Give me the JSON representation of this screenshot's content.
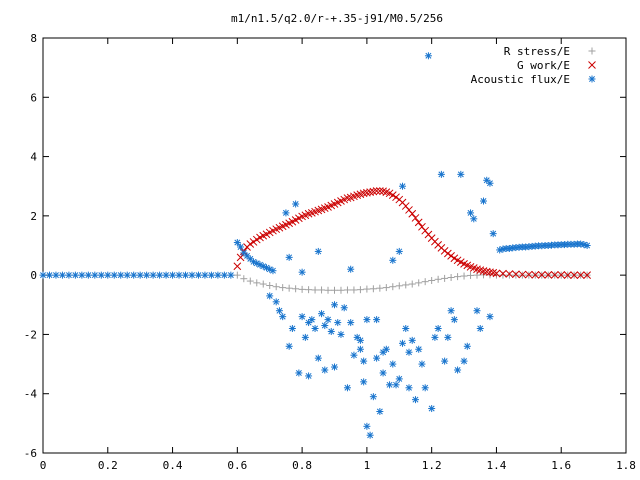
{
  "colors": {
    "r_stress": "#a0a0a0",
    "g_work": "#cc0000",
    "acoustic": "#1874cd"
  },
  "chart_data": {
    "type": "scatter",
    "title": "m1/n1.5/q2.0/r-+.35-j91/M0.5/256",
    "xlabel": "",
    "ylabel": "",
    "xlim": [
      0,
      1.8
    ],
    "ylim": [
      -6,
      8
    ],
    "xticks": [
      "0",
      "0.2",
      "0.4",
      "0.6",
      "0.8",
      "1",
      "1.2",
      "1.4",
      "1.6",
      "1.8"
    ],
    "yticks": [
      "-6",
      "-4",
      "-2",
      "0",
      "2",
      "4",
      "6",
      "8"
    ],
    "grid": false,
    "legend_position": "top-right",
    "series": [
      {
        "name": "R stress/E",
        "marker": "plus",
        "points": [
          [
            0.6,
            0
          ],
          [
            0.62,
            -0.12
          ],
          [
            0.64,
            -0.2
          ],
          [
            0.66,
            -0.26
          ],
          [
            0.68,
            -0.3
          ],
          [
            0.7,
            -0.35
          ],
          [
            0.72,
            -0.39
          ],
          [
            0.74,
            -0.42
          ],
          [
            0.76,
            -0.44
          ],
          [
            0.78,
            -0.46
          ],
          [
            0.8,
            -0.48
          ],
          [
            0.82,
            -0.49
          ],
          [
            0.84,
            -0.5
          ],
          [
            0.86,
            -0.5
          ],
          [
            0.88,
            -0.51
          ],
          [
            0.9,
            -0.51
          ],
          [
            0.92,
            -0.51
          ],
          [
            0.94,
            -0.5
          ],
          [
            0.96,
            -0.5
          ],
          [
            0.98,
            -0.49
          ],
          [
            1.0,
            -0.47
          ],
          [
            1.02,
            -0.46
          ],
          [
            1.04,
            -0.44
          ],
          [
            1.06,
            -0.42
          ],
          [
            1.08,
            -0.39
          ],
          [
            1.1,
            -0.36
          ],
          [
            1.12,
            -0.33
          ],
          [
            1.14,
            -0.3
          ],
          [
            1.16,
            -0.26
          ],
          [
            1.18,
            -0.22
          ],
          [
            1.2,
            -0.18
          ],
          [
            1.22,
            -0.14
          ],
          [
            1.24,
            -0.11
          ],
          [
            1.26,
            -0.08
          ],
          [
            1.28,
            -0.05
          ],
          [
            1.3,
            -0.03
          ],
          [
            1.32,
            -0.01
          ],
          [
            1.34,
            0.0
          ],
          [
            1.36,
            0.01
          ],
          [
            1.38,
            0.01
          ],
          [
            1.4,
            0.0
          ],
          [
            1.42,
            0
          ],
          [
            1.44,
            0
          ],
          [
            1.46,
            0
          ],
          [
            1.48,
            0
          ],
          [
            1.5,
            0
          ],
          [
            1.52,
            0
          ],
          [
            1.54,
            0
          ],
          [
            1.56,
            0
          ],
          [
            1.58,
            0
          ],
          [
            1.6,
            0
          ],
          [
            1.62,
            0
          ],
          [
            1.64,
            0
          ],
          [
            1.66,
            0
          ],
          [
            1.68,
            0
          ]
        ]
      },
      {
        "name": "G work/E",
        "marker": "cross",
        "points": [
          [
            0.6,
            0.3
          ],
          [
            0.61,
            0.6
          ],
          [
            0.62,
            0.8
          ],
          [
            0.63,
            0.95
          ],
          [
            0.64,
            1.05
          ],
          [
            0.65,
            1.12
          ],
          [
            0.66,
            1.2
          ],
          [
            0.67,
            1.27
          ],
          [
            0.68,
            1.33
          ],
          [
            0.69,
            1.38
          ],
          [
            0.7,
            1.44
          ],
          [
            0.71,
            1.5
          ],
          [
            0.72,
            1.55
          ],
          [
            0.73,
            1.6
          ],
          [
            0.74,
            1.65
          ],
          [
            0.75,
            1.7
          ],
          [
            0.76,
            1.75
          ],
          [
            0.77,
            1.8
          ],
          [
            0.78,
            1.86
          ],
          [
            0.79,
            1.92
          ],
          [
            0.8,
            1.98
          ],
          [
            0.81,
            2.02
          ],
          [
            0.82,
            2.07
          ],
          [
            0.83,
            2.1
          ],
          [
            0.84,
            2.14
          ],
          [
            0.85,
            2.18
          ],
          [
            0.86,
            2.22
          ],
          [
            0.87,
            2.26
          ],
          [
            0.88,
            2.3
          ],
          [
            0.89,
            2.35
          ],
          [
            0.9,
            2.4
          ],
          [
            0.91,
            2.45
          ],
          [
            0.92,
            2.5
          ],
          [
            0.93,
            2.55
          ],
          [
            0.94,
            2.6
          ],
          [
            0.95,
            2.62
          ],
          [
            0.96,
            2.66
          ],
          [
            0.97,
            2.7
          ],
          [
            0.98,
            2.73
          ],
          [
            0.99,
            2.76
          ],
          [
            1.0,
            2.78
          ],
          [
            1.01,
            2.8
          ],
          [
            1.02,
            2.82
          ],
          [
            1.03,
            2.84
          ],
          [
            1.04,
            2.84
          ],
          [
            1.05,
            2.83
          ],
          [
            1.06,
            2.8
          ],
          [
            1.07,
            2.76
          ],
          [
            1.08,
            2.7
          ],
          [
            1.09,
            2.63
          ],
          [
            1.1,
            2.55
          ],
          [
            1.11,
            2.45
          ],
          [
            1.12,
            2.33
          ],
          [
            1.13,
            2.2
          ],
          [
            1.14,
            2.07
          ],
          [
            1.15,
            1.93
          ],
          [
            1.16,
            1.78
          ],
          [
            1.17,
            1.63
          ],
          [
            1.18,
            1.5
          ],
          [
            1.19,
            1.37
          ],
          [
            1.2,
            1.25
          ],
          [
            1.21,
            1.13
          ],
          [
            1.22,
            1.02
          ],
          [
            1.23,
            0.92
          ],
          [
            1.24,
            0.82
          ],
          [
            1.25,
            0.73
          ],
          [
            1.26,
            0.65
          ],
          [
            1.27,
            0.57
          ],
          [
            1.28,
            0.5
          ],
          [
            1.29,
            0.44
          ],
          [
            1.3,
            0.38
          ],
          [
            1.31,
            0.33
          ],
          [
            1.32,
            0.28
          ],
          [
            1.33,
            0.24
          ],
          [
            1.34,
            0.2
          ],
          [
            1.35,
            0.17
          ],
          [
            1.36,
            0.14
          ],
          [
            1.37,
            0.12
          ],
          [
            1.38,
            0.1
          ],
          [
            1.39,
            0.08
          ],
          [
            1.4,
            0.06
          ],
          [
            1.42,
            0.05
          ],
          [
            1.44,
            0.04
          ],
          [
            1.46,
            0.03
          ],
          [
            1.48,
            0.02
          ],
          [
            1.5,
            0.02
          ],
          [
            1.52,
            0.01
          ],
          [
            1.54,
            0.01
          ],
          [
            1.56,
            0.01
          ],
          [
            1.58,
            0.01
          ],
          [
            1.6,
            0.01
          ],
          [
            1.62,
            0
          ],
          [
            1.64,
            0
          ],
          [
            1.66,
            0
          ],
          [
            1.68,
            0
          ]
        ]
      },
      {
        "name": "Acoustic flux/E",
        "marker": "star",
        "points": [
          [
            0.0,
            0
          ],
          [
            0.02,
            0
          ],
          [
            0.04,
            0
          ],
          [
            0.06,
            0
          ],
          [
            0.08,
            0
          ],
          [
            0.1,
            0
          ],
          [
            0.12,
            0
          ],
          [
            0.14,
            0
          ],
          [
            0.16,
            0
          ],
          [
            0.18,
            0
          ],
          [
            0.2,
            0
          ],
          [
            0.22,
            0
          ],
          [
            0.24,
            0
          ],
          [
            0.26,
            0
          ],
          [
            0.28,
            0
          ],
          [
            0.3,
            0
          ],
          [
            0.32,
            0
          ],
          [
            0.34,
            0
          ],
          [
            0.36,
            0
          ],
          [
            0.38,
            0
          ],
          [
            0.4,
            0
          ],
          [
            0.42,
            0
          ],
          [
            0.44,
            0
          ],
          [
            0.46,
            0
          ],
          [
            0.48,
            0
          ],
          [
            0.5,
            0
          ],
          [
            0.52,
            0
          ],
          [
            0.54,
            0
          ],
          [
            0.56,
            0
          ],
          [
            0.58,
            0
          ],
          [
            0.6,
            1.1
          ],
          [
            0.61,
            0.95
          ],
          [
            0.62,
            0.75
          ],
          [
            0.63,
            0.65
          ],
          [
            0.64,
            0.55
          ],
          [
            0.65,
            0.45
          ],
          [
            0.66,
            0.4
          ],
          [
            0.67,
            0.35
          ],
          [
            0.68,
            0.3
          ],
          [
            0.69,
            0.25
          ],
          [
            0.7,
            0.2
          ],
          [
            0.71,
            0.15
          ],
          [
            0.7,
            -0.7
          ],
          [
            0.72,
            -0.9
          ],
          [
            0.73,
            -1.2
          ],
          [
            0.74,
            -1.4
          ],
          [
            0.75,
            2.1
          ],
          [
            0.76,
            0.6
          ],
          [
            0.77,
            -1.8
          ],
          [
            0.76,
            -2.4
          ],
          [
            0.78,
            2.4
          ],
          [
            0.79,
            -3.3
          ],
          [
            0.8,
            -1.4
          ],
          [
            0.8,
            0.1
          ],
          [
            0.81,
            -2.1
          ],
          [
            0.82,
            -3.4
          ],
          [
            0.82,
            -1.6
          ],
          [
            0.83,
            -1.5
          ],
          [
            0.84,
            -1.8
          ],
          [
            0.85,
            -2.8
          ],
          [
            0.85,
            0.8
          ],
          [
            0.86,
            -1.3
          ],
          [
            0.87,
            -1.7
          ],
          [
            0.87,
            -3.2
          ],
          [
            0.88,
            -1.5
          ],
          [
            0.89,
            -1.9
          ],
          [
            0.9,
            -3.1
          ],
          [
            0.9,
            -1.0
          ],
          [
            0.91,
            -1.6
          ],
          [
            0.92,
            -2.0
          ],
          [
            0.93,
            -1.1
          ],
          [
            0.94,
            -3.8
          ],
          [
            0.95,
            -1.6
          ],
          [
            0.95,
            0.2
          ],
          [
            0.96,
            -2.7
          ],
          [
            0.97,
            -2.1
          ],
          [
            0.98,
            -2.2
          ],
          [
            0.98,
            -2.5
          ],
          [
            0.99,
            -2.9
          ],
          [
            0.99,
            -3.6
          ],
          [
            1.0,
            -5.1
          ],
          [
            1.01,
            -5.4
          ],
          [
            1.0,
            -1.5
          ],
          [
            1.02,
            -4.1
          ],
          [
            1.03,
            -1.5
          ],
          [
            1.03,
            -2.8
          ],
          [
            1.04,
            -4.6
          ],
          [
            1.05,
            -2.6
          ],
          [
            1.05,
            -3.3
          ],
          [
            1.06,
            -2.5
          ],
          [
            1.07,
            -3.7
          ],
          [
            1.08,
            0.5
          ],
          [
            1.08,
            -3.0
          ],
          [
            1.09,
            -3.7
          ],
          [
            1.1,
            0.8
          ],
          [
            1.1,
            -3.5
          ],
          [
            1.11,
            3.0
          ],
          [
            1.11,
            -2.3
          ],
          [
            1.12,
            -1.8
          ],
          [
            1.13,
            -3.8
          ],
          [
            1.13,
            -2.6
          ],
          [
            1.14,
            -2.2
          ],
          [
            1.15,
            -4.2
          ],
          [
            1.16,
            -2.5
          ],
          [
            1.17,
            -3.0
          ],
          [
            1.18,
            -3.8
          ],
          [
            1.19,
            7.4
          ],
          [
            1.2,
            -4.5
          ],
          [
            1.21,
            -2.1
          ],
          [
            1.22,
            -1.8
          ],
          [
            1.23,
            3.4
          ],
          [
            1.24,
            -2.9
          ],
          [
            1.25,
            -2.1
          ],
          [
            1.26,
            -1.2
          ],
          [
            1.27,
            -1.5
          ],
          [
            1.28,
            -3.2
          ],
          [
            1.29,
            3.4
          ],
          [
            1.3,
            -2.9
          ],
          [
            1.31,
            -2.4
          ],
          [
            1.32,
            2.1
          ],
          [
            1.33,
            1.9
          ],
          [
            1.34,
            -1.2
          ],
          [
            1.35,
            -1.8
          ],
          [
            1.36,
            2.5
          ],
          [
            1.37,
            3.2
          ],
          [
            1.38,
            3.1
          ],
          [
            1.38,
            -1.4
          ],
          [
            1.39,
            1.4
          ],
          [
            1.41,
            0.85
          ],
          [
            1.42,
            0.88
          ],
          [
            1.43,
            0.9
          ],
          [
            1.44,
            0.9
          ],
          [
            1.45,
            0.92
          ],
          [
            1.46,
            0.93
          ],
          [
            1.47,
            0.94
          ],
          [
            1.48,
            0.95
          ],
          [
            1.49,
            0.95
          ],
          [
            1.5,
            0.96
          ],
          [
            1.51,
            0.97
          ],
          [
            1.52,
            0.98
          ],
          [
            1.53,
            0.99
          ],
          [
            1.54,
            0.99
          ],
          [
            1.55,
            1.0
          ],
          [
            1.56,
            1.0
          ],
          [
            1.57,
            1.01
          ],
          [
            1.58,
            1.02
          ],
          [
            1.59,
            1.02
          ],
          [
            1.6,
            1.03
          ],
          [
            1.61,
            1.03
          ],
          [
            1.62,
            1.04
          ],
          [
            1.63,
            1.04
          ],
          [
            1.64,
            1.04
          ],
          [
            1.65,
            1.05
          ],
          [
            1.66,
            1.05
          ],
          [
            1.67,
            1.03
          ],
          [
            1.68,
            1.0
          ]
        ]
      }
    ]
  }
}
